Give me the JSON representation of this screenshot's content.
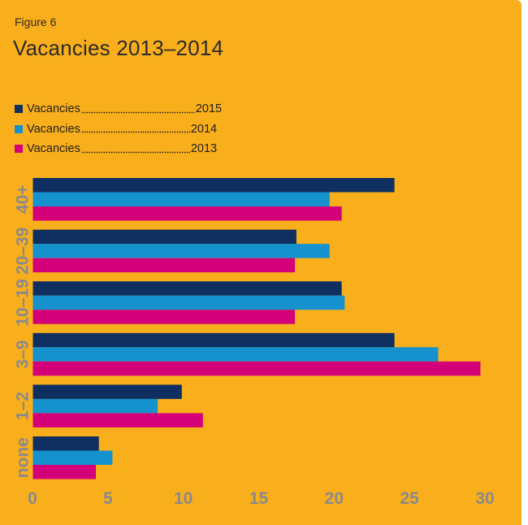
{
  "figure_label": "Figure 6",
  "title": "Vacancies 2013–2014",
  "colors": {
    "background": "#F9AE1B",
    "s2015": "#0E2F60",
    "s2014": "#1592CE",
    "s2013": "#D4007A",
    "axis_text": "#8a8a8a"
  },
  "chart_data": {
    "type": "bar",
    "orientation": "horizontal",
    "title": "Vacancies 2013–2014",
    "categories": [
      "40+",
      "20–39",
      "10–19",
      "3–9",
      "1–2",
      "none"
    ],
    "series": [
      {
        "name": "2015",
        "label": "Vacancies",
        "color": "#0E2F60",
        "values": [
          24.0,
          17.5,
          20.5,
          24.0,
          9.9,
          4.4
        ]
      },
      {
        "name": "2014",
        "label": "Vacancies ",
        "color": "#1592CE",
        "values": [
          19.7,
          19.7,
          20.7,
          26.9,
          8.3,
          5.3
        ]
      },
      {
        "name": "2013",
        "label": "Vacancies ",
        "color": "#D4007A",
        "values": [
          20.5,
          17.4,
          17.4,
          29.7,
          11.3,
          4.2
        ]
      }
    ],
    "xlim": [
      0,
      30
    ],
    "xticks": [
      0,
      5,
      10,
      15,
      20,
      25,
      30
    ],
    "xlabel": "",
    "ylabel": "",
    "grid": false,
    "legend_position": "top-left"
  }
}
